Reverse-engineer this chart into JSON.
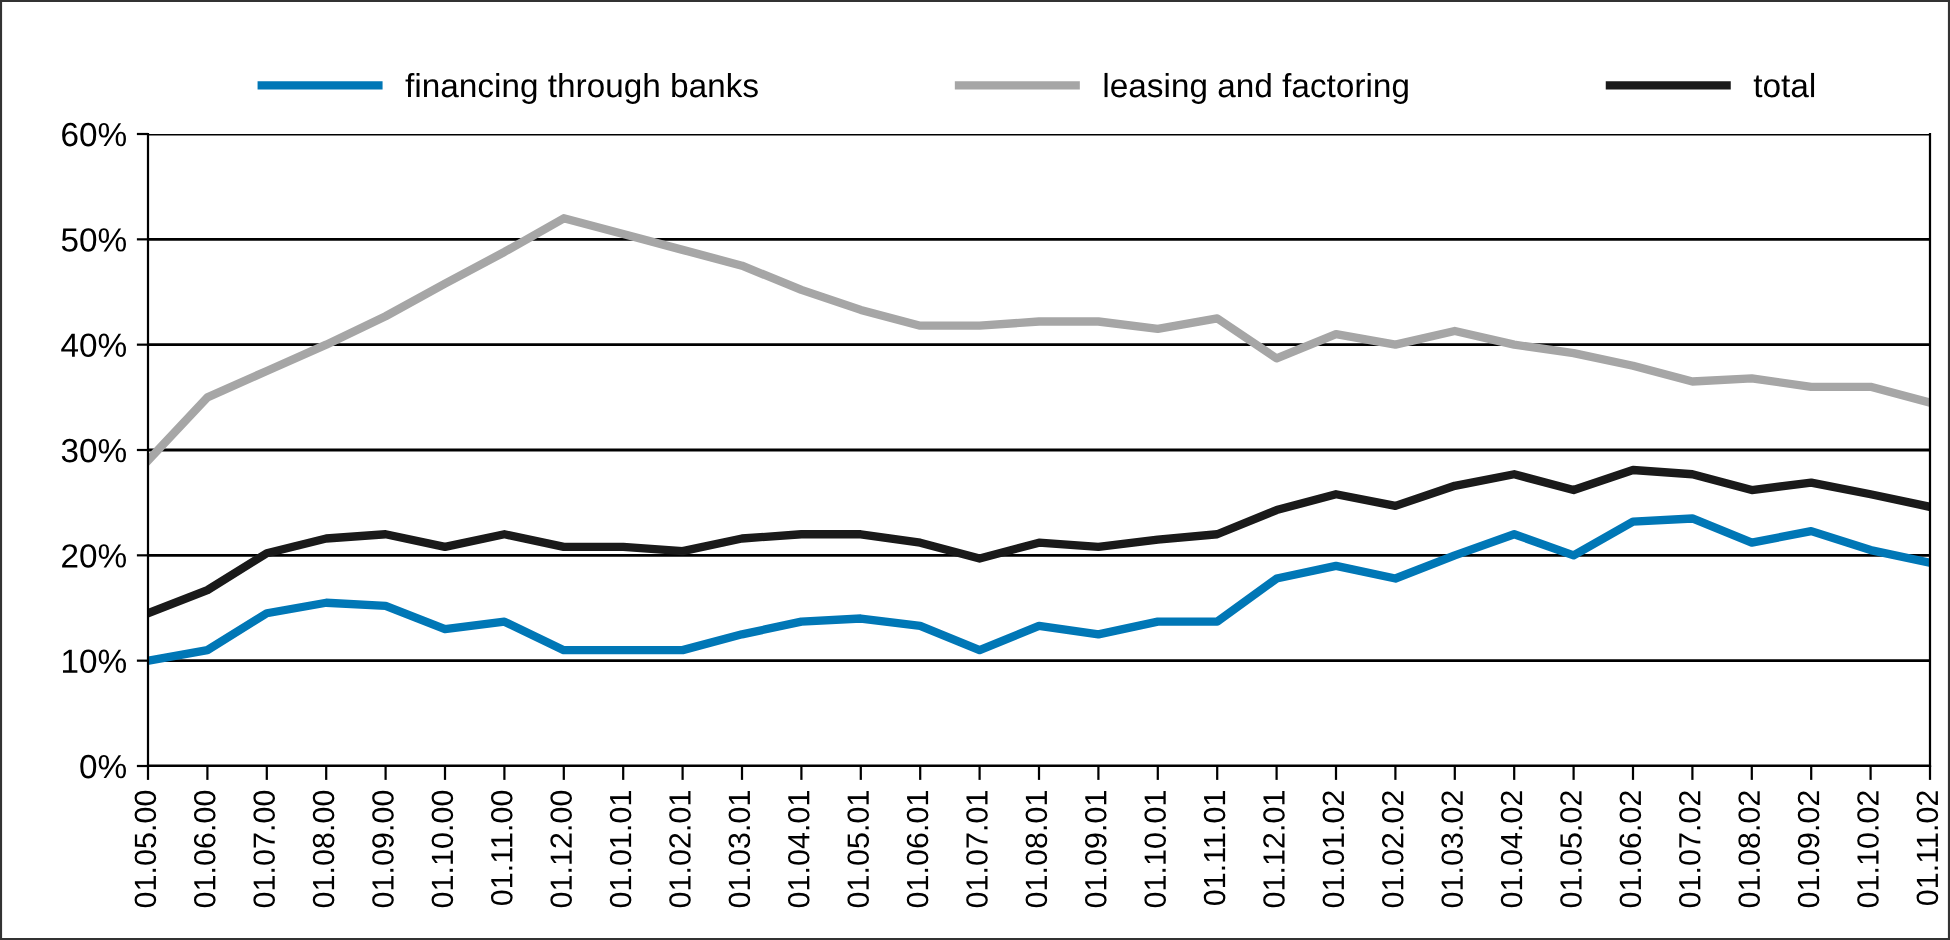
{
  "chart_data": {
    "type": "line",
    "categories": [
      "01.05.00",
      "01.06.00",
      "01.07.00",
      "01.08.00",
      "01.09.00",
      "01.10.00",
      "01.11.00",
      "01.12.00",
      "01.01.01",
      "01.02.01",
      "01.03.01",
      "01.04.01",
      "01.05.01",
      "01.06.01",
      "01.07.01",
      "01.08.01",
      "01.09.01",
      "01.10.01",
      "01.11.01",
      "01.12.01",
      "01.01.02",
      "01.02.02",
      "01.03.02",
      "01.04.02",
      "01.05.02",
      "01.06.02",
      "01.07.02",
      "01.08.02",
      "01.09.02",
      "01.10.02",
      "01.11.02"
    ],
    "series": [
      {
        "name": "financing through banks",
        "color": "#0077b6",
        "values": [
          10,
          11,
          14.5,
          15.5,
          15.2,
          13,
          13.7,
          11,
          11,
          11,
          12.5,
          13.7,
          14,
          13.3,
          11,
          13.3,
          12.5,
          13.7,
          13.7,
          17.8,
          19,
          17.8,
          20,
          22,
          20,
          23.2,
          23.5,
          21.2,
          22.3,
          20.5,
          19.3
        ]
      },
      {
        "name": "leasing and factoring",
        "color": "#a6a6a6",
        "values": [
          29,
          35,
          37.5,
          40,
          42.7,
          45.8,
          48.8,
          52,
          50.5,
          49,
          47.5,
          45.2,
          43.3,
          41.8,
          41.8,
          42.2,
          42.2,
          41.5,
          42.5,
          38.7,
          41,
          40,
          41.3,
          40,
          39.2,
          38,
          36.5,
          36.8,
          36,
          36,
          34.5
        ]
      },
      {
        "name": "total",
        "color": "#1a1a1a",
        "values": [
          14.5,
          16.7,
          20.2,
          21.6,
          22,
          20.8,
          22,
          20.8,
          20.8,
          20.4,
          21.6,
          22,
          22,
          21.2,
          19.7,
          21.2,
          20.8,
          21.5,
          22,
          24.3,
          25.8,
          24.7,
          26.6,
          27.7,
          26.2,
          28.1,
          27.7,
          26.2,
          26.9,
          25.8,
          24.6
        ]
      }
    ],
    "ylim": [
      0,
      60
    ],
    "yticks": [
      {
        "value": 0,
        "label": "0%"
      },
      {
        "value": 10,
        "label": "10%"
      },
      {
        "value": 20,
        "label": "20%"
      },
      {
        "value": 30,
        "label": "30%"
      },
      {
        "value": 40,
        "label": "40%"
      },
      {
        "value": 50,
        "label": "50%"
      },
      {
        "value": 60,
        "label": "60%"
      }
    ],
    "grid": "y",
    "legend": "top",
    "marker": "none",
    "line_style": "solid"
  }
}
